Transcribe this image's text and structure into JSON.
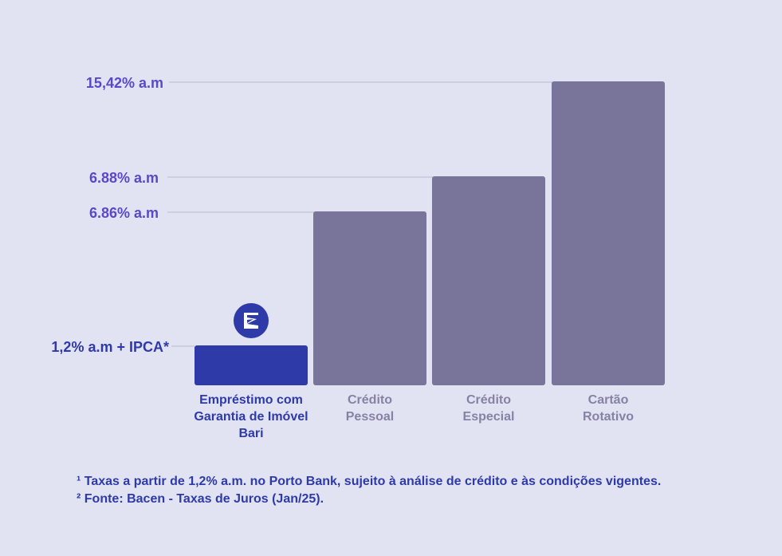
{
  "chart_data": {
    "type": "bar",
    "categories": [
      [
        "Empréstimo com",
        "Garantia de Imóvel",
        "Bari"
      ],
      [
        "Crédito",
        "Pessoal"
      ],
      [
        "Crédito",
        "Especial"
      ],
      [
        "Cartão",
        "Rotativo"
      ]
    ],
    "values": [
      1.2,
      6.86,
      6.88,
      15.42
    ],
    "value_labels": [
      "1,2% a.m + IPCA*",
      "6.86% a.m",
      "6.88% a.m",
      "15,42% a.m"
    ],
    "highlight_index": 0,
    "colors": {
      "highlight": "#2e3aa8",
      "bar": "#79759a",
      "value_label": "#5a48c8",
      "grid": "#b9b8cf"
    },
    "highlight_icon": "bari-logo-icon"
  },
  "footnotes": [
    "¹ Taxas a partir de 1,2% a.m. no Porto Bank, sujeito à análise de crédito e às condições vigentes.",
    "² Fonte: Bacen - Taxas de Juros (Jan/25)."
  ]
}
